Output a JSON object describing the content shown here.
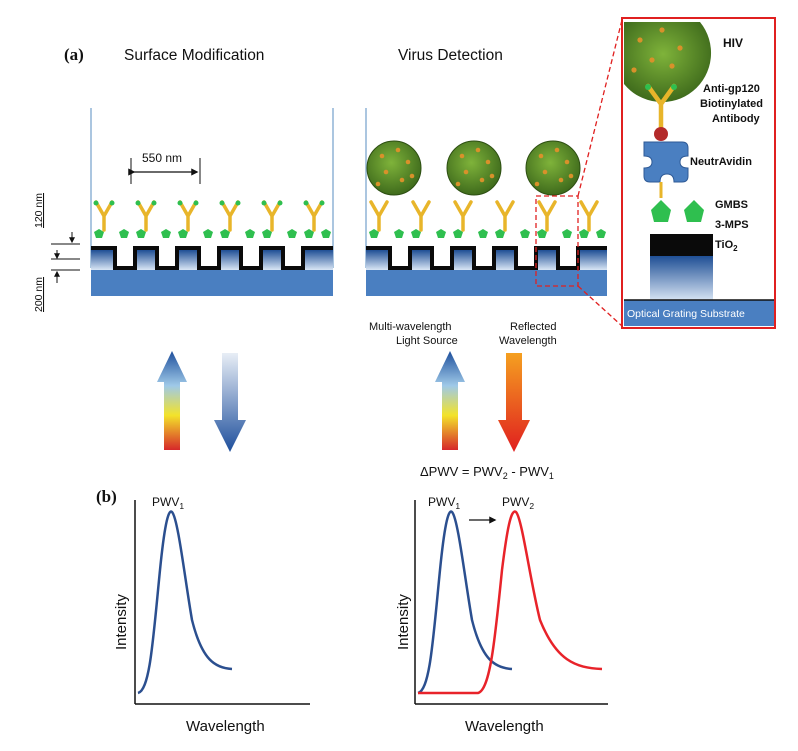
{
  "panel_labels": {
    "a": "(a)",
    "b": "(b)"
  },
  "headings": {
    "surface_mod": "Surface Modification",
    "virus_detect": "Virus Detection"
  },
  "dimensions": {
    "period": "550 nm",
    "depth": "120 nm",
    "thickness": "200 nm"
  },
  "sources": {
    "multi_1": "Multi-wavelength",
    "multi_2": "Light Source",
    "refl_1": "Reflected",
    "refl_2": "Wavelength"
  },
  "inset": {
    "hiv": "HIV",
    "antibody_1": "Anti-gp120",
    "antibody_2": "Biotinylated",
    "antibody_3": "Antibody",
    "neutravidin": "NeutrAvidin",
    "gmbs": "GMBS",
    "mps": "3-MPS",
    "tio2_main": "TiO",
    "tio2_sub": "2",
    "substrate": "Optical Grating Substrate"
  },
  "equation": {
    "lhs": "ΔPWV = PWV",
    "s2": "2",
    "minus": " - PWV",
    "s1": "1"
  },
  "plots": {
    "left_peak_main": "PWV",
    "left_peak_sub": "1",
    "right_peak1_main": "PWV",
    "right_peak1_sub": "1",
    "right_peak2_main": "PWV",
    "right_peak2_sub": "2",
    "ylabel": "Intensity",
    "xlabel": "Wavelength"
  },
  "colors": {
    "sensor_blue": "#4a7fc1",
    "grating_black": "#0a0a0a",
    "link_green": "#2fbf4f",
    "antibody_yellow": "#e8b52a",
    "virus_green": "#5a8a2a",
    "highlight_red": "#e02020",
    "curve_blue": "#2b4f8f",
    "curve_red": "#e8232a"
  }
}
